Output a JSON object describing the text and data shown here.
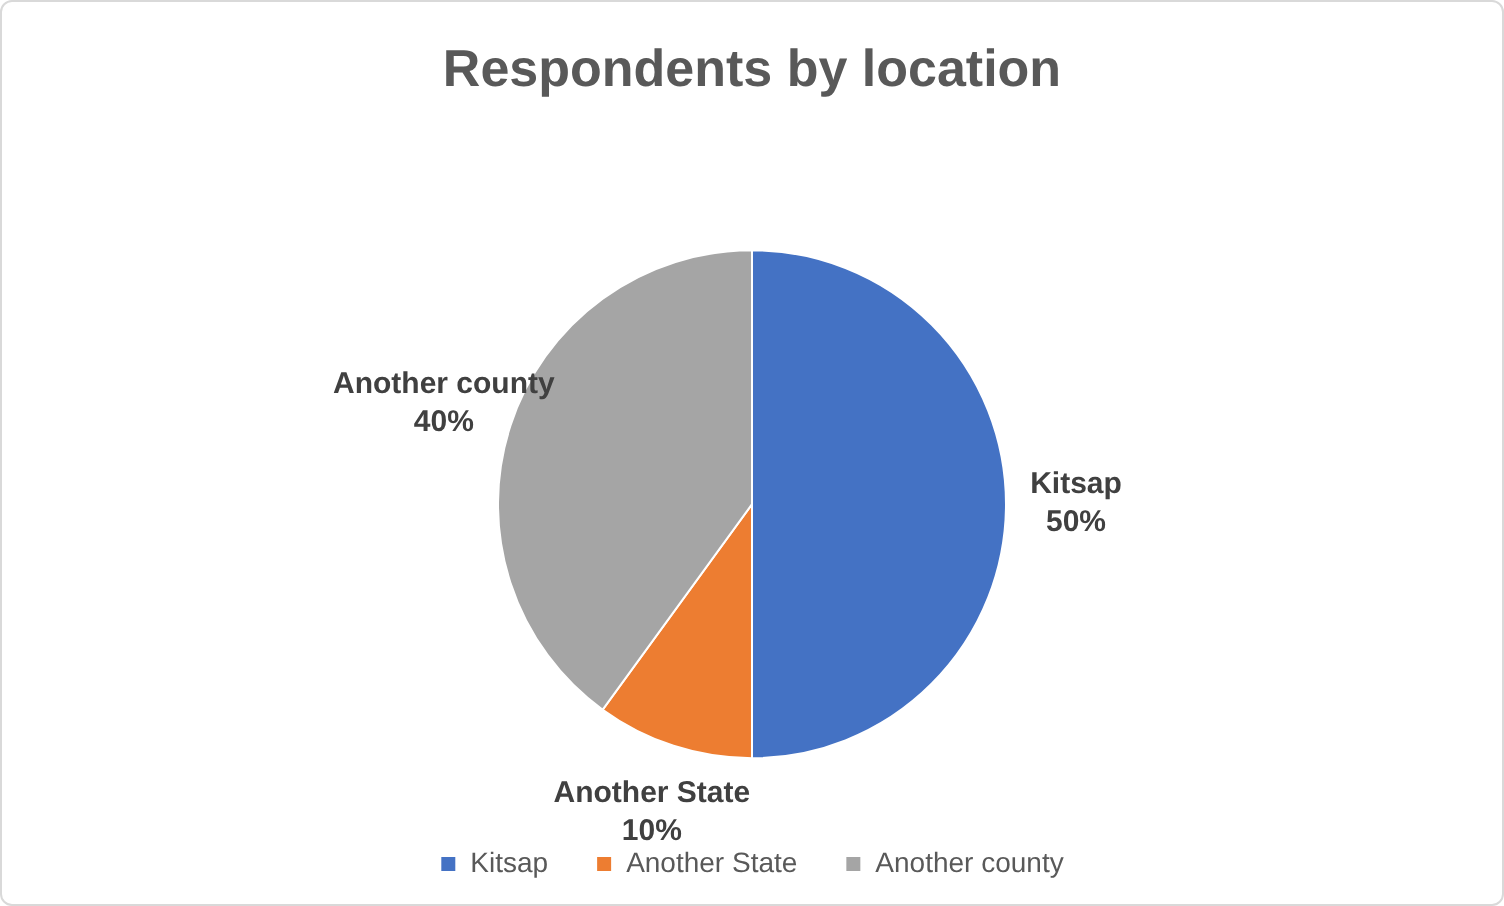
{
  "chart_data": {
    "type": "pie",
    "title": "Respondents by location",
    "categories": [
      "Kitsap",
      "Another State",
      "Another county"
    ],
    "values": [
      50,
      10,
      40
    ],
    "value_labels": [
      "50%",
      "10%",
      "40%"
    ],
    "colors": [
      "#4472c4",
      "#ed7d31",
      "#a5a5a5"
    ],
    "legend": "bottom"
  }
}
